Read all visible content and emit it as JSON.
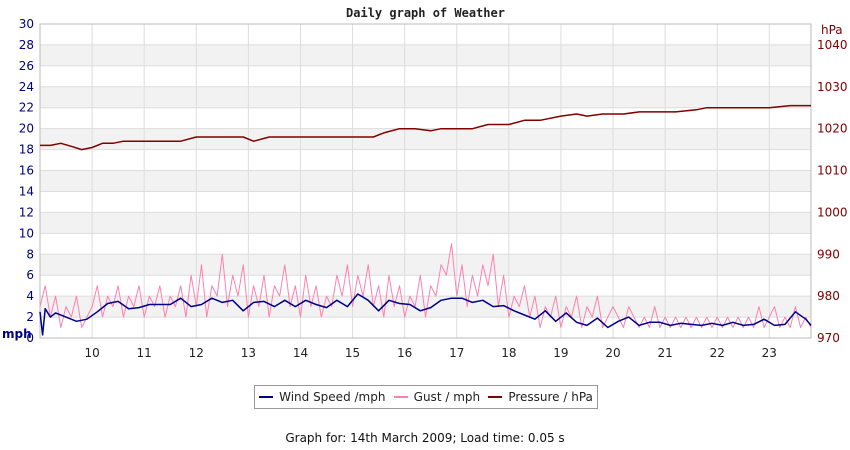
{
  "chart_data": {
    "type": "line",
    "title": "Daily graph of Weather",
    "left_axis": {
      "unit": "mph",
      "ylim": [
        0,
        30
      ],
      "ticks": [
        0,
        2,
        4,
        6,
        8,
        10,
        12,
        14,
        16,
        18,
        20,
        22,
        24,
        26,
        28,
        30
      ]
    },
    "right_axis": {
      "unit": "hPa",
      "ylim": [
        970,
        1045
      ],
      "ticks": [
        970,
        980,
        990,
        1000,
        1010,
        1020,
        1030,
        1040
      ]
    },
    "x_axis": {
      "xlim": [
        9.0,
        23.8
      ],
      "ticks": [
        10,
        11,
        12,
        13,
        14,
        15,
        16,
        17,
        18,
        19,
        20,
        21,
        22,
        23
      ]
    },
    "grid": true,
    "legend_position": "bottom",
    "colors": {
      "wind": "#00008b",
      "gust": "#ff80b0",
      "pressure": "#800000"
    },
    "series": [
      {
        "name": "Wind Speed /mph",
        "axis": "left",
        "x": [
          9.0,
          9.05,
          9.1,
          9.2,
          9.3,
          9.5,
          9.7,
          9.9,
          10.1,
          10.3,
          10.5,
          10.7,
          10.9,
          11.1,
          11.3,
          11.5,
          11.7,
          11.9,
          12.1,
          12.3,
          12.5,
          12.7,
          12.9,
          13.1,
          13.3,
          13.5,
          13.7,
          13.9,
          14.1,
          14.3,
          14.5,
          14.7,
          14.9,
          15.1,
          15.3,
          15.5,
          15.7,
          15.9,
          16.1,
          16.3,
          16.5,
          16.7,
          16.9,
          17.1,
          17.3,
          17.5,
          17.7,
          17.9,
          18.1,
          18.3,
          18.5,
          18.7,
          18.9,
          19.1,
          19.3,
          19.5,
          19.7,
          19.9,
          20.1,
          20.3,
          20.5,
          20.7,
          20.9,
          21.1,
          21.3,
          21.5,
          21.7,
          21.9,
          22.1,
          22.3,
          22.5,
          22.7,
          22.9,
          23.1,
          23.3,
          23.5,
          23.7,
          23.8
        ],
        "values": [
          2.5,
          0.3,
          2.8,
          2.0,
          2.4,
          2.0,
          1.6,
          1.8,
          2.5,
          3.3,
          3.5,
          2.8,
          2.9,
          3.2,
          3.2,
          3.2,
          3.8,
          3.0,
          3.2,
          3.8,
          3.4,
          3.6,
          2.6,
          3.4,
          3.5,
          3.0,
          3.6,
          3.0,
          3.6,
          3.2,
          2.9,
          3.6,
          3.0,
          4.2,
          3.6,
          2.6,
          3.6,
          3.3,
          3.2,
          2.6,
          2.9,
          3.6,
          3.8,
          3.8,
          3.4,
          3.6,
          3.0,
          3.1,
          2.6,
          2.2,
          1.8,
          2.6,
          1.6,
          2.4,
          1.5,
          1.2,
          1.9,
          1.0,
          1.6,
          2.0,
          1.2,
          1.5,
          1.5,
          1.2,
          1.4,
          1.3,
          1.2,
          1.4,
          1.2,
          1.5,
          1.2,
          1.3,
          1.8,
          1.2,
          1.3,
          2.5,
          1.8,
          1.2
        ]
      },
      {
        "name": "Gust / mph",
        "axis": "left",
        "x": [
          9.0,
          9.1,
          9.2,
          9.3,
          9.4,
          9.5,
          9.6,
          9.7,
          9.8,
          9.9,
          10.0,
          10.1,
          10.2,
          10.3,
          10.4,
          10.5,
          10.6,
          10.7,
          10.8,
          10.9,
          11.0,
          11.1,
          11.2,
          11.3,
          11.4,
          11.5,
          11.6,
          11.7,
          11.8,
          11.9,
          12.0,
          12.1,
          12.2,
          12.3,
          12.4,
          12.5,
          12.6,
          12.7,
          12.8,
          12.9,
          13.0,
          13.1,
          13.2,
          13.3,
          13.4,
          13.5,
          13.6,
          13.7,
          13.8,
          13.9,
          14.0,
          14.1,
          14.2,
          14.3,
          14.4,
          14.5,
          14.6,
          14.7,
          14.8,
          14.9,
          15.0,
          15.1,
          15.2,
          15.3,
          15.4,
          15.5,
          15.6,
          15.7,
          15.8,
          15.9,
          16.0,
          16.1,
          16.2,
          16.3,
          16.4,
          16.5,
          16.6,
          16.7,
          16.8,
          16.9,
          17.0,
          17.1,
          17.2,
          17.3,
          17.4,
          17.5,
          17.6,
          17.7,
          17.8,
          17.9,
          18.0,
          18.1,
          18.2,
          18.3,
          18.4,
          18.5,
          18.6,
          18.7,
          18.8,
          18.9,
          19.0,
          19.1,
          19.2,
          19.3,
          19.4,
          19.5,
          19.6,
          19.7,
          19.8,
          19.9,
          20.0,
          20.1,
          20.2,
          20.3,
          20.4,
          20.5,
          20.6,
          20.7,
          20.8,
          20.9,
          21.0,
          21.1,
          21.2,
          21.3,
          21.4,
          21.5,
          21.6,
          21.7,
          21.8,
          21.9,
          22.0,
          22.1,
          22.2,
          22.3,
          22.4,
          22.5,
          22.6,
          22.7,
          22.8,
          22.9,
          23.0,
          23.1,
          23.2,
          23.3,
          23.4,
          23.5,
          23.6,
          23.7,
          23.8
        ],
        "values": [
          3,
          5,
          2,
          4,
          1,
          3,
          2,
          4,
          1,
          2,
          3,
          5,
          2,
          4,
          3,
          5,
          2,
          4,
          3,
          5,
          2,
          4,
          3,
          5,
          2,
          4,
          3,
          5,
          2,
          6,
          3,
          7,
          2,
          5,
          4,
          8,
          3,
          6,
          4,
          7,
          2,
          5,
          3,
          6,
          2,
          5,
          4,
          7,
          3,
          5,
          2,
          6,
          3,
          5,
          2,
          4,
          3,
          6,
          4,
          7,
          3,
          6,
          4,
          7,
          3,
          5,
          2,
          6,
          3,
          5,
          2,
          4,
          3,
          6,
          2,
          5,
          4,
          7,
          6,
          9,
          4,
          7,
          3,
          6,
          4,
          7,
          5,
          8,
          3,
          6,
          2,
          4,
          3,
          5,
          2,
          4,
          1,
          3,
          2,
          4,
          1,
          3,
          2,
          4,
          1,
          3,
          2,
          4,
          1,
          2,
          3,
          2,
          1,
          3,
          2,
          1,
          2,
          1,
          3,
          1,
          2,
          1,
          2,
          1,
          2,
          1,
          2,
          1,
          2,
          1,
          2,
          1,
          2,
          1,
          2,
          1,
          2,
          1,
          3,
          1,
          2,
          3,
          1,
          2,
          1,
          3,
          1,
          2,
          1
        ]
      },
      {
        "name": "Pressure / hPa",
        "axis": "right",
        "x": [
          9.0,
          9.2,
          9.4,
          9.6,
          9.8,
          10.0,
          10.2,
          10.4,
          10.6,
          11.0,
          11.4,
          11.7,
          12.0,
          12.4,
          12.9,
          13.1,
          13.4,
          13.8,
          14.2,
          14.6,
          15.0,
          15.4,
          15.6,
          15.9,
          16.2,
          16.5,
          16.7,
          17.0,
          17.3,
          17.6,
          18.0,
          18.3,
          18.6,
          19.0,
          19.3,
          19.5,
          19.8,
          20.2,
          20.5,
          20.8,
          21.2,
          21.6,
          21.8,
          22.2,
          22.6,
          23.0,
          23.4,
          23.8
        ],
        "values": [
          1016,
          1016,
          1016.5,
          1015.8,
          1015,
          1015.5,
          1016.5,
          1016.5,
          1017,
          1017,
          1017,
          1017,
          1018,
          1018,
          1018,
          1017,
          1018,
          1018,
          1018,
          1018,
          1018,
          1018,
          1019,
          1020,
          1020,
          1019.5,
          1020,
          1020,
          1020,
          1021,
          1021,
          1022,
          1022,
          1023,
          1023.5,
          1023,
          1023.5,
          1023.5,
          1024,
          1024,
          1024,
          1024.5,
          1025,
          1025,
          1025,
          1025,
          1025.5,
          1025.5
        ]
      }
    ]
  },
  "footer": {
    "text": "Graph for: 14th March 2009; Load time: 0.05 s"
  }
}
